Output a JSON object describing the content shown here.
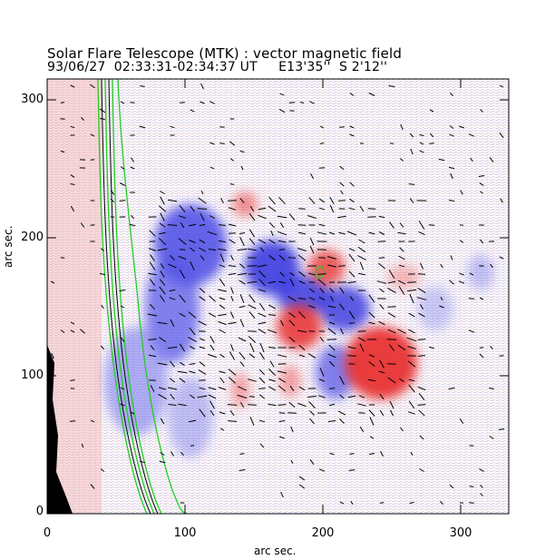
{
  "figure": {
    "title": "Solar Flare Telescope (MTK) : vector magnetic field",
    "subtitle": "93/06/27  02:33:31-02:34:37 UT     E13'35''  S 2'12''"
  },
  "axes": {
    "xlabel": "arc sec.",
    "ylabel": "arc sec.",
    "xticks": [
      "0",
      "100",
      "200",
      "300"
    ],
    "yticks": [
      "0",
      "100",
      "200",
      "300"
    ],
    "xlim": [
      0,
      335
    ],
    "ylim": [
      0,
      315
    ]
  },
  "colors": {
    "positive_polarity": "#e83030",
    "negative_polarity": "#3a3ae0",
    "contour": "#22cc22",
    "limb": "#000000",
    "vector": "#000000"
  },
  "chart_data": {
    "type": "heatmap",
    "title": "Solar Flare Telescope (MTK) : vector magnetic field",
    "xlabel": "arc sec.",
    "ylabel": "arc sec.",
    "xlim": [
      0,
      335
    ],
    "ylim": [
      0,
      315
    ],
    "legend": "none",
    "grid": false
  }
}
